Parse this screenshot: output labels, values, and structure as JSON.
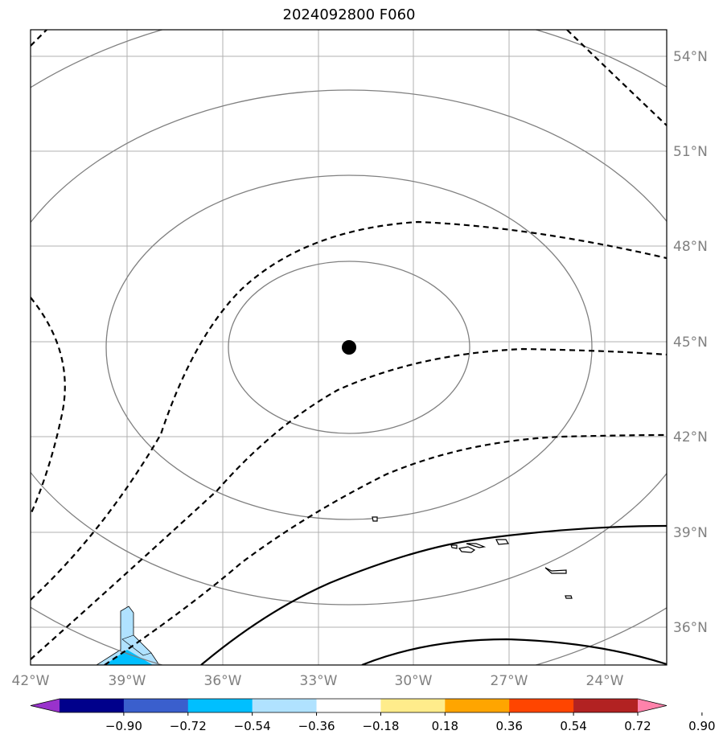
{
  "title": "2024092800 F060",
  "map": {
    "longitude_labels": [
      "42°W",
      "39°W",
      "36°W",
      "33°W",
      "30°W",
      "27°W",
      "24°W"
    ],
    "latitude_labels": [
      "54°N",
      "51°N",
      "48°N",
      "45°N",
      "42°N",
      "39°N",
      "36°N"
    ],
    "center_marker": {
      "lon": -32.0,
      "lat": 44.85
    }
  },
  "colorbar": {
    "tick_labels": [
      "−0.90",
      "−0.72",
      "−0.54",
      "−0.36",
      "−0.18",
      "0.18",
      "0.36",
      "0.54",
      "0.72",
      "0.90"
    ],
    "colors": [
      "#9932cc",
      "#00008b",
      "#3a5fcd",
      "#00bfff",
      "#b0e2ff",
      "#ffffff",
      "#ffec8b",
      "#ffa500",
      "#ff4500",
      "#b22222",
      "#ff82ab"
    ]
  }
}
